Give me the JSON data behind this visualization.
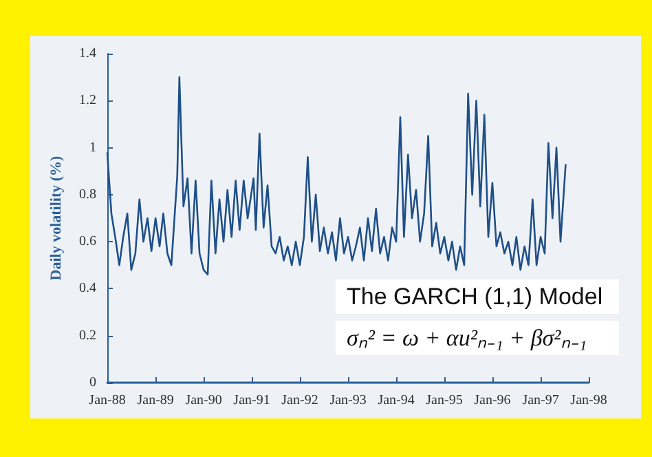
{
  "chart_data": {
    "type": "line",
    "ylabel": "Daily volatility (%)",
    "annotations": [
      "The GARCH (1,1) Model",
      "σₙ² = ω + αu²ₙ₋₁ + βσ²ₙ₋₁"
    ],
    "x": [
      "1988-01-01",
      "1988-02",
      "1988-03",
      "1988-04",
      "1988-05",
      "1988-06",
      "1988-07",
      "1988-08",
      "1988-09",
      "1988-10",
      "1988-11",
      "1988-12",
      "1989-01",
      "1989-02",
      "1989-03",
      "1989-04",
      "1989-05",
      "1989-06-15",
      "1989-07",
      "1989-08",
      "1989-09",
      "1989-10",
      "1989-11",
      "1989-12",
      "1990-01",
      "1990-02",
      "1990-03",
      "1990-04",
      "1990-05",
      "1990-06",
      "1990-07",
      "1990-08",
      "1990-09",
      "1990-10",
      "1990-11",
      "1990-12",
      "1991-01-15",
      "1991-02",
      "1991-03",
      "1991-04",
      "1991-05",
      "1991-06",
      "1991-07",
      "1991-08",
      "1991-09",
      "1991-10",
      "1991-11",
      "1991-12",
      "1992-01",
      "1992-02",
      "1992-03",
      "1992-04",
      "1992-05",
      "1992-06",
      "1992-07",
      "1992-08",
      "1992-09",
      "1992-10",
      "1992-11",
      "1992-12",
      "1993-01",
      "1993-02",
      "1993-03",
      "1993-04",
      "1993-05",
      "1993-06",
      "1993-07",
      "1993-08",
      "1993-09",
      "1993-10",
      "1993-11",
      "1993-12",
      "1994-01",
      "1994-02",
      "1994-03",
      "1994-04",
      "1994-05",
      "1994-06",
      "1994-07",
      "1994-08",
      "1994-09",
      "1994-10",
      "1994-11",
      "1994-12",
      "1995-01",
      "1995-02",
      "1995-03",
      "1995-04",
      "1995-05",
      "1995-06",
      "1995-07",
      "1995-08",
      "1995-09",
      "1995-10",
      "1995-11",
      "1995-12",
      "1996-01",
      "1996-02",
      "1996-03",
      "1996-04",
      "1996-05",
      "1996-06",
      "1996-07",
      "1996-08",
      "1996-09",
      "1996-10",
      "1996-11",
      "1996-12",
      "1997-01",
      "1997-02",
      "1997-03",
      "1997-04",
      "1997-05",
      "1997-06",
      "1997-07-10"
    ],
    "series": [
      {
        "color": "#1f4f88",
        "values": [
          0.98,
          0.72,
          0.62,
          0.5,
          0.62,
          0.72,
          0.48,
          0.55,
          0.78,
          0.6,
          0.7,
          0.56,
          0.7,
          0.58,
          0.72,
          0.55,
          0.5,
          0.88,
          1.3,
          0.75,
          0.87,
          0.55,
          0.86,
          0.55,
          0.48,
          0.46,
          0.86,
          0.55,
          0.78,
          0.6,
          0.82,
          0.62,
          0.86,
          0.65,
          0.86,
          0.7,
          0.87,
          0.65,
          1.06,
          0.66,
          0.84,
          0.58,
          0.55,
          0.62,
          0.52,
          0.58,
          0.5,
          0.6,
          0.5,
          0.62,
          0.96,
          0.6,
          0.8,
          0.56,
          0.66,
          0.55,
          0.64,
          0.52,
          0.7,
          0.55,
          0.62,
          0.52,
          0.58,
          0.66,
          0.52,
          0.7,
          0.56,
          0.74,
          0.55,
          0.62,
          0.52,
          0.66,
          0.6,
          1.13,
          0.62,
          0.97,
          0.7,
          0.82,
          0.6,
          0.72,
          1.05,
          0.58,
          0.68,
          0.55,
          0.62,
          0.52,
          0.6,
          0.48,
          0.58,
          0.5,
          1.23,
          0.8,
          1.2,
          0.75,
          1.14,
          0.62,
          0.85,
          0.58,
          0.64,
          0.55,
          0.6,
          0.5,
          0.62,
          0.48,
          0.58,
          0.5,
          0.78,
          0.5,
          0.62,
          0.55,
          1.02,
          0.7,
          1.0,
          0.6,
          0.93
        ]
      }
    ],
    "xlim": [
      "1988-01-01",
      "1998-01-01"
    ],
    "xticks": [
      {
        "value": "1988-01-01",
        "label": "Jan-88"
      },
      {
        "value": "1989-01-01",
        "label": "Jan-89"
      },
      {
        "value": "1990-01-01",
        "label": "Jan-90"
      },
      {
        "value": "1991-01-01",
        "label": "Jan-91"
      },
      {
        "value": "1992-01-01",
        "label": "Jan-92"
      },
      {
        "value": "1993-01-01",
        "label": "Jan-93"
      },
      {
        "value": "1994-01-01",
        "label": "Jan-94"
      },
      {
        "value": "1995-01-01",
        "label": "Jan-95"
      },
      {
        "value": "1996-01-01",
        "label": "Jan-96"
      },
      {
        "value": "1997-01-01",
        "label": "Jan-97"
      },
      {
        "value": "1998-01-01",
        "label": "Jan-98"
      }
    ],
    "ylim": [
      0,
      1.4
    ],
    "yticks": [
      0,
      0.2,
      0.4,
      0.6,
      0.8,
      1,
      1.2,
      1.4
    ],
    "grid": false,
    "marker": "none",
    "line_style": "solid"
  }
}
